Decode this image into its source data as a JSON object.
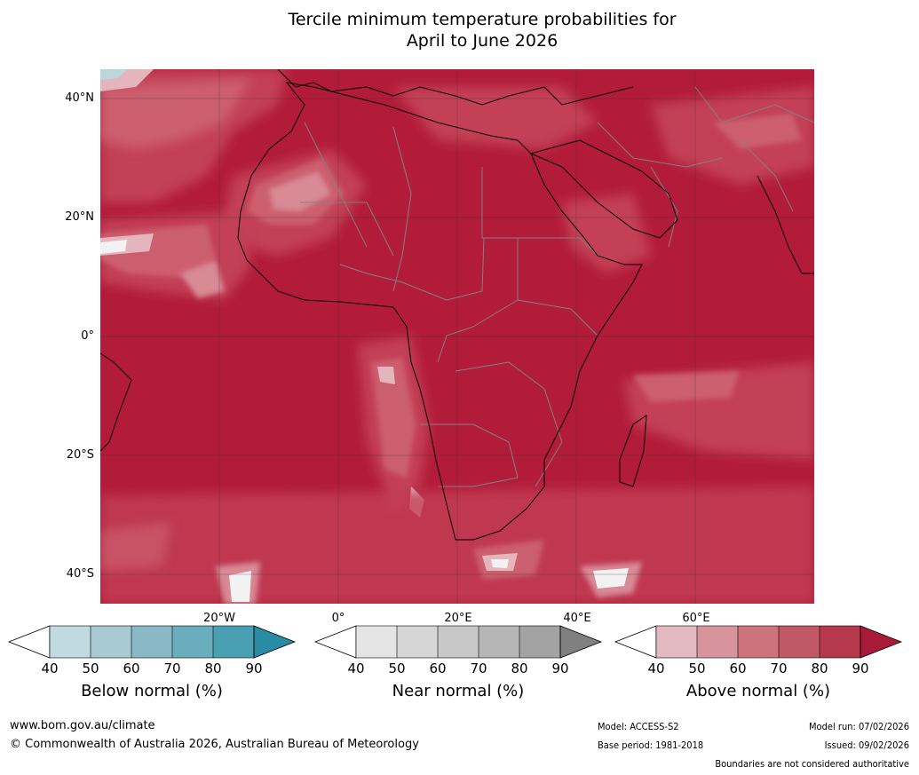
{
  "title": {
    "line1": "Tercile minimum temperature probabilities for",
    "line2": "April to June 2026"
  },
  "map": {
    "lat_labels": [
      "40°N",
      "20°N",
      "0°",
      "20°S",
      "40°S"
    ],
    "lon_labels": [
      "20°W",
      "0°",
      "20°E",
      "40°E",
      "60°E"
    ],
    "colors": {
      "ocean_base": "#b21c3a",
      "land_base": "#b31d3b",
      "above_80": "#c34057",
      "above_70": "#cc5f6e",
      "above_60": "#d88a95",
      "above_50": "#e5b5bd",
      "near_white": "#f2f2f2",
      "below_50": "#bcd6de",
      "border": "#808080",
      "coast": "#000000",
      "grid": "#333333"
    }
  },
  "legends": [
    {
      "label": "Below normal (%)",
      "ticks": [
        "40",
        "50",
        "60",
        "70",
        "80",
        "90"
      ],
      "colors": [
        "#ffffff",
        "#c1d9e0",
        "#a9cad1",
        "#8ab8c5",
        "#6aadbd",
        "#4aa0b3",
        "#2a8ca4"
      ]
    },
    {
      "label": "Near normal (%)",
      "ticks": [
        "40",
        "50",
        "60",
        "70",
        "80",
        "90"
      ],
      "colors": [
        "#ffffff",
        "#e4e4e4",
        "#d6d6d6",
        "#c8c8c8",
        "#b6b6b6",
        "#a3a3a3",
        "#808080"
      ]
    },
    {
      "label": "Above normal (%)",
      "ticks": [
        "40",
        "50",
        "60",
        "70",
        "80",
        "90"
      ],
      "colors": [
        "#ffffff",
        "#e2b9c0",
        "#d8949d",
        "#cc737c",
        "#c05866",
        "#b6384d",
        "#a81a35"
      ]
    }
  ],
  "footer": {
    "website": "www.bom.gov.au/climate",
    "copyright": "© Commonwealth of Australia 2026, Australian Bureau of Meteorology",
    "model": "Model: ACCESS-S2",
    "base_period": "Base period: 1981-2018",
    "model_run": "Model run: 07/02/2026",
    "issued": "Issued: 09/02/2026",
    "disclaimer": "Boundaries are not considered authoritative"
  }
}
